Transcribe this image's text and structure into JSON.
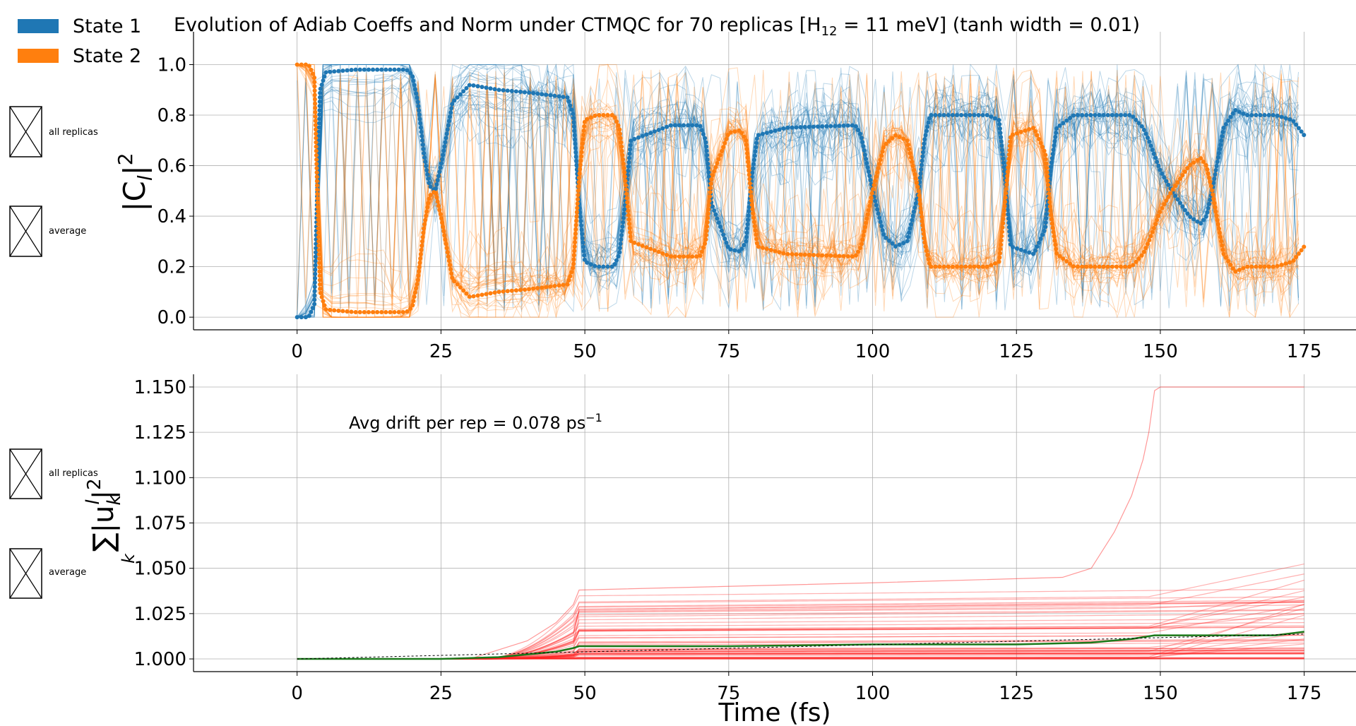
{
  "legend": {
    "items": [
      {
        "label": "State 1",
        "color": "#1f77b4"
      },
      {
        "label": "State 2",
        "color": "#ff7f0e"
      }
    ]
  },
  "checkboxes": {
    "top": [
      {
        "label": "all replicas"
      },
      {
        "label": "average"
      }
    ],
    "bottom": [
      {
        "label": "all replicas"
      },
      {
        "label": "average"
      }
    ]
  },
  "chart_data": [
    {
      "type": "line",
      "title": "Evolution of Adiab Coeffs and Norm under CTMQC for 70 replicas [H",
      "title_sub": "12",
      "title_rest": " = 11 meV]   (tanh width = 0.01)",
      "ylabel_base": "|C",
      "ylabel_sub": "l",
      "ylabel_sup": "2",
      "xlabel": "",
      "xlim": [
        -18,
        184
      ],
      "ylim": [
        -0.05,
        1.13
      ],
      "xticks": [
        "0",
        "25",
        "50",
        "75",
        "100",
        "125",
        "150",
        "175"
      ],
      "yticks": [
        "0.0",
        "0.2",
        "0.4",
        "0.6",
        "0.8",
        "1.0"
      ],
      "grid": true,
      "series": [
        {
          "name": "State 1",
          "color": "#1f77b4",
          "x": [
            0,
            2,
            3,
            3.5,
            4,
            5,
            10,
            19,
            20,
            21,
            22,
            23,
            24,
            25,
            27,
            30,
            35,
            40,
            47,
            48,
            49,
            50,
            52,
            55,
            56,
            57,
            58,
            65,
            70,
            71,
            72,
            75,
            77,
            78,
            79,
            80,
            85,
            97,
            98,
            100,
            102,
            104,
            106,
            108,
            109,
            110,
            120,
            122,
            123,
            124,
            128,
            130,
            131,
            132,
            135,
            140,
            145,
            147,
            148,
            150,
            152,
            155,
            157,
            158,
            159,
            161,
            163,
            165,
            170,
            173,
            175
          ],
          "y": [
            0.0,
            0.0,
            0.05,
            0.5,
            0.9,
            0.97,
            0.98,
            0.98,
            0.96,
            0.85,
            0.65,
            0.52,
            0.5,
            0.6,
            0.85,
            0.92,
            0.9,
            0.89,
            0.87,
            0.8,
            0.45,
            0.22,
            0.2,
            0.2,
            0.25,
            0.45,
            0.7,
            0.76,
            0.76,
            0.7,
            0.45,
            0.27,
            0.26,
            0.3,
            0.55,
            0.72,
            0.75,
            0.76,
            0.72,
            0.5,
            0.32,
            0.28,
            0.3,
            0.5,
            0.7,
            0.8,
            0.8,
            0.78,
            0.55,
            0.28,
            0.25,
            0.35,
            0.6,
            0.75,
            0.8,
            0.8,
            0.8,
            0.75,
            0.7,
            0.58,
            0.5,
            0.4,
            0.37,
            0.4,
            0.5,
            0.75,
            0.82,
            0.8,
            0.8,
            0.78,
            0.72
          ]
        },
        {
          "name": "State 2",
          "color": "#ff7f0e",
          "x": [
            0,
            2,
            3,
            3.5,
            4,
            5,
            10,
            19,
            20,
            21,
            22,
            23,
            24,
            25,
            27,
            30,
            35,
            40,
            47,
            48,
            49,
            50,
            52,
            55,
            56,
            57,
            58,
            65,
            70,
            71,
            72,
            75,
            77,
            78,
            79,
            80,
            85,
            97,
            98,
            100,
            102,
            104,
            106,
            108,
            109,
            110,
            120,
            122,
            123,
            124,
            128,
            130,
            131,
            132,
            135,
            140,
            145,
            147,
            148,
            150,
            152,
            155,
            157,
            158,
            159,
            161,
            163,
            165,
            170,
            173,
            175
          ],
          "y": [
            1.0,
            1.0,
            0.95,
            0.5,
            0.1,
            0.03,
            0.02,
            0.02,
            0.04,
            0.15,
            0.35,
            0.48,
            0.5,
            0.4,
            0.15,
            0.08,
            0.1,
            0.11,
            0.13,
            0.2,
            0.55,
            0.78,
            0.8,
            0.8,
            0.75,
            0.55,
            0.3,
            0.24,
            0.24,
            0.3,
            0.55,
            0.73,
            0.74,
            0.7,
            0.45,
            0.28,
            0.25,
            0.24,
            0.28,
            0.5,
            0.68,
            0.72,
            0.7,
            0.5,
            0.3,
            0.2,
            0.2,
            0.22,
            0.45,
            0.72,
            0.75,
            0.65,
            0.4,
            0.25,
            0.2,
            0.2,
            0.2,
            0.25,
            0.3,
            0.42,
            0.5,
            0.6,
            0.63,
            0.6,
            0.5,
            0.25,
            0.18,
            0.2,
            0.2,
            0.22,
            0.28
          ]
        }
      ]
    },
    {
      "type": "line",
      "title": "",
      "xlabel": "Time (fs)",
      "ylabel_base": "∑|u",
      "ylabel_sub": "k",
      "ylabel_sup": "l",
      "ylabel_sub2": "k",
      "ylabel_pow": "2",
      "xlim": [
        -18,
        184
      ],
      "ylim": [
        0.993,
        1.157
      ],
      "xticks": [
        "0",
        "25",
        "50",
        "75",
        "100",
        "125",
        "150",
        "175"
      ],
      "yticks": [
        "1.000",
        "1.025",
        "1.050",
        "1.075",
        "1.100",
        "1.125",
        "1.150"
      ],
      "grid": true,
      "annotation": {
        "text": "Avg drift per rep = 0.078 ps",
        "sup": "−1",
        "x": 9,
        "y": 1.127
      },
      "series": [
        {
          "name": "",
          "color": "#1a7a1a",
          "x": [
            0,
            25,
            35,
            45,
            48,
            49,
            75,
            100,
            125,
            138,
            145,
            149,
            150,
            170,
            175
          ],
          "y": [
            1.0,
            1.0,
            1.001,
            1.004,
            1.006,
            1.007,
            1.007,
            1.008,
            1.008,
            1.009,
            1.011,
            1.013,
            1.013,
            1.013,
            1.015
          ]
        },
        {
          "name": "",
          "color": "#ff3030",
          "x": [
            0,
            30,
            40,
            45,
            48,
            49,
            100,
            133,
            138,
            142,
            145,
            147,
            148,
            149,
            150,
            175
          ],
          "y": [
            1.0,
            1.0,
            1.01,
            1.02,
            1.03,
            1.038,
            1.042,
            1.045,
            1.05,
            1.07,
            1.09,
            1.11,
            1.125,
            1.148,
            1.15,
            1.15
          ]
        }
      ]
    }
  ]
}
